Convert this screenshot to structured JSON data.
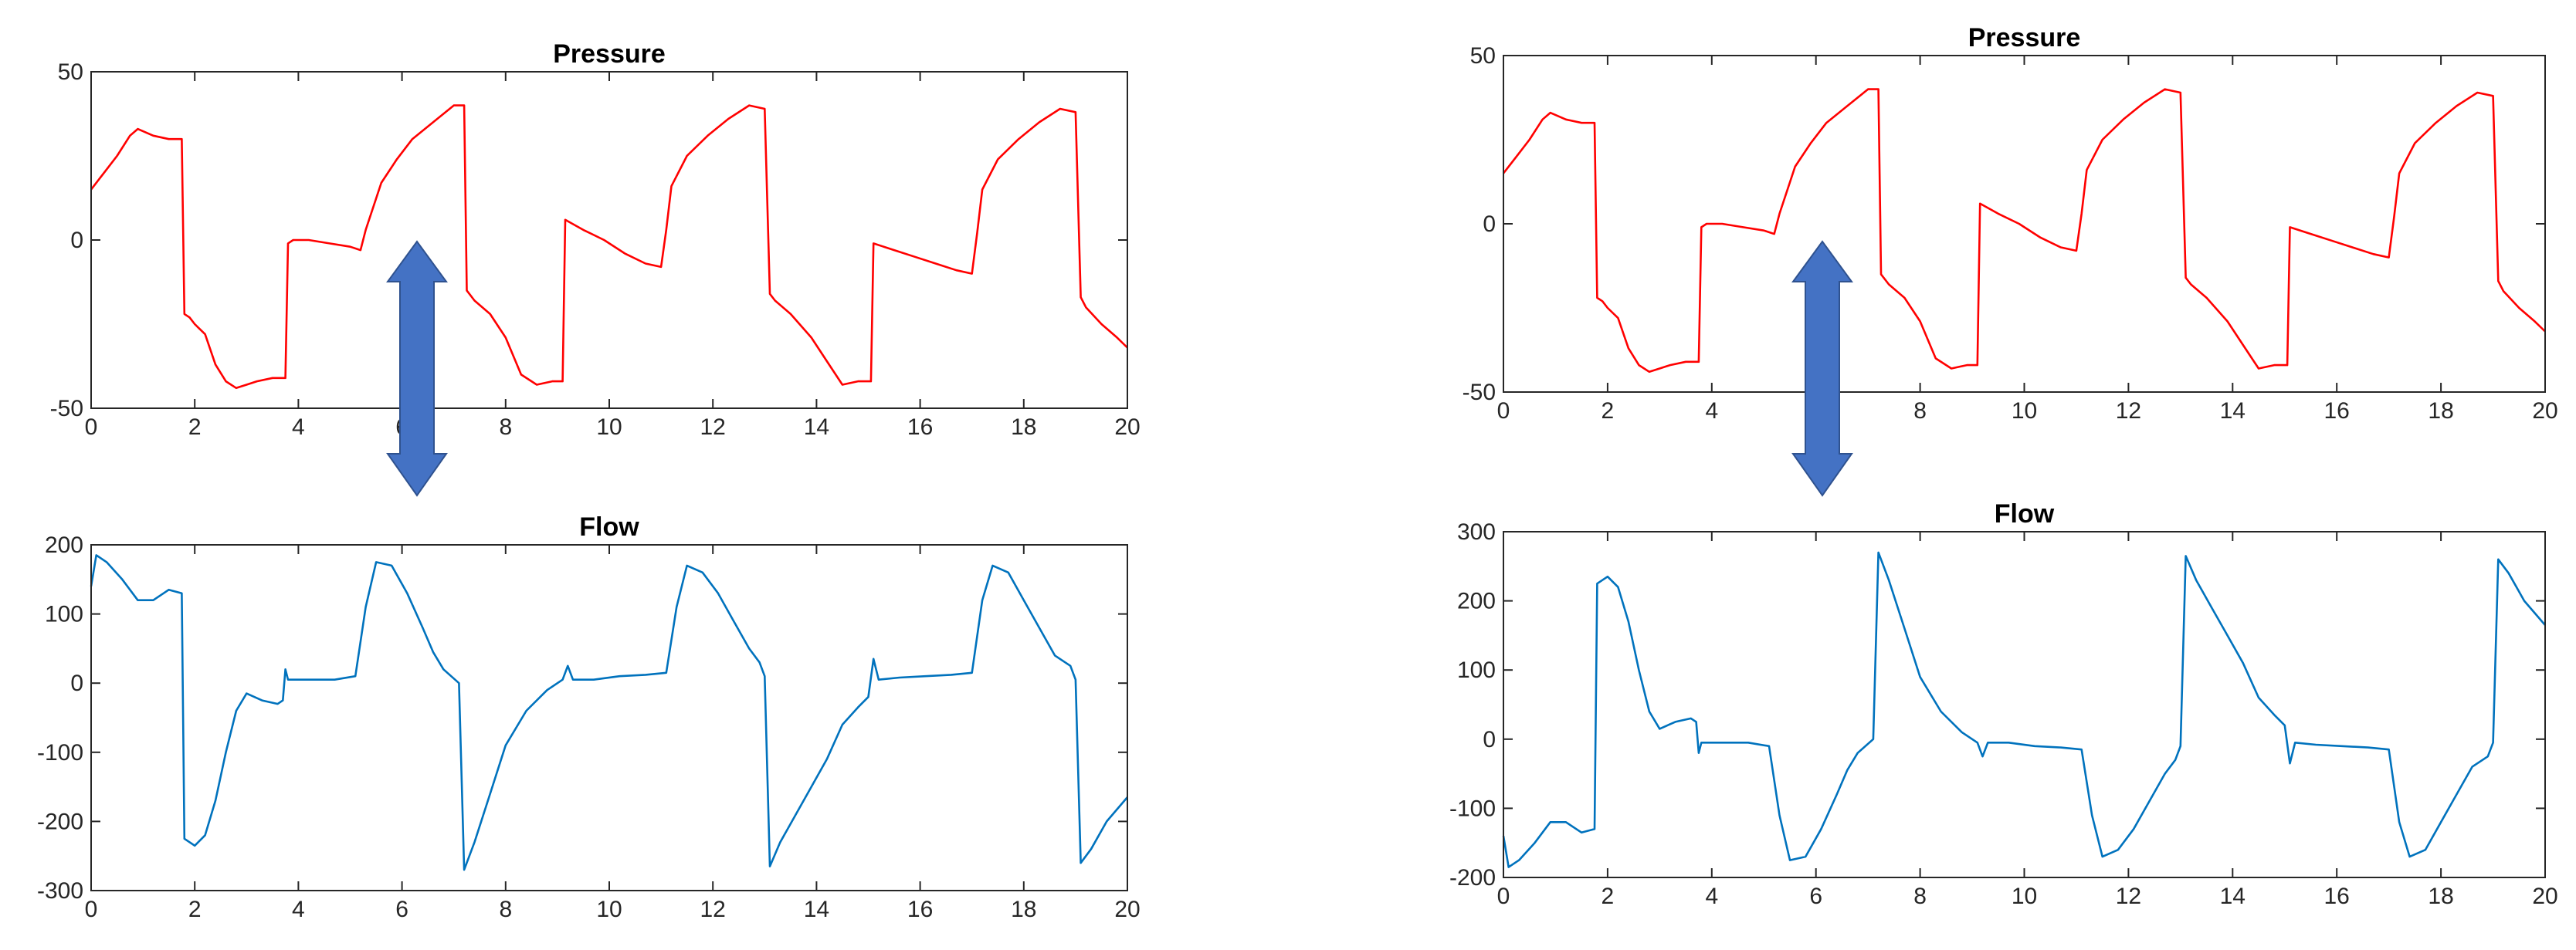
{
  "colors": {
    "pressure": "#ff0000",
    "flow": "#0072bd",
    "arrow_fill": "#4472c4",
    "arrow_stroke": "#2f528f",
    "axes": "#262626",
    "background": "#ffffff"
  },
  "chart_data": [
    {
      "id": "left-pressure",
      "type": "line",
      "title": "Pressure",
      "xlabel": "",
      "ylabel": "",
      "xlim": [
        0,
        20
      ],
      "ylim": [
        -50,
        50
      ],
      "xticks": [
        0,
        2,
        4,
        6,
        8,
        10,
        12,
        14,
        16,
        18,
        20
      ],
      "yticks": [
        -50,
        0,
        50
      ],
      "xtick_labels": [
        "0",
        "2",
        "4",
        "6",
        "8",
        "10",
        "12",
        "14",
        "16",
        "18",
        "20"
      ],
      "ytick_labels": [
        "-50",
        "0",
        "50"
      ],
      "grid": false,
      "series": [
        {
          "color": "#ff0000",
          "x": [
            0,
            0.25,
            0.5,
            0.75,
            0.9,
            1.2,
            1.5,
            1.75,
            1.8,
            1.9,
            2.0,
            2.2,
            2.4,
            2.6,
            2.8,
            3.0,
            3.2,
            3.5,
            3.75,
            3.8,
            3.9,
            4.2,
            4.6,
            5.0,
            5.2,
            5.3,
            5.6,
            5.9,
            6.2,
            6.6,
            7.0,
            7.2,
            7.25,
            7.4,
            7.7,
            8.0,
            8.3,
            8.6,
            8.9,
            9.1,
            9.15,
            9.5,
            9.9,
            10.3,
            10.7,
            11.0,
            11.1,
            11.2,
            11.5,
            11.9,
            12.3,
            12.7,
            13.0,
            13.1,
            13.2,
            13.5,
            13.9,
            14.2,
            14.5,
            14.8,
            15.05,
            15.1,
            15.5,
            15.9,
            16.3,
            16.7,
            17.0,
            17.1,
            17.2,
            17.5,
            17.9,
            18.3,
            18.7,
            19.0,
            19.1,
            19.2,
            19.5,
            19.8,
            20.0
          ],
          "y": [
            15,
            20,
            25,
            31,
            33,
            31,
            30,
            30,
            -22,
            -23,
            -25,
            -28,
            -37,
            -42,
            -44,
            -43,
            -42,
            -41,
            -41,
            -1,
            0,
            0,
            -1,
            -2,
            -3,
            3,
            17,
            24,
            30,
            35,
            40,
            40,
            -15,
            -18,
            -22,
            -29,
            -40,
            -43,
            -42,
            -42,
            6,
            3,
            0,
            -4,
            -7,
            -8,
            3,
            16,
            25,
            31,
            36,
            40,
            39,
            -16,
            -18,
            -22,
            -29,
            -36,
            -43,
            -42,
            -42,
            -1,
            -3,
            -5,
            -7,
            -9,
            -10,
            2,
            15,
            24,
            30,
            35,
            39,
            38,
            -17,
            -20,
            -25,
            -29,
            -32
          ]
        }
      ]
    },
    {
      "id": "left-flow",
      "type": "line",
      "title": "Flow",
      "xlabel": "",
      "ylabel": "",
      "xlim": [
        0,
        20
      ],
      "ylim": [
        -300,
        200
      ],
      "xticks": [
        0,
        2,
        4,
        6,
        8,
        10,
        12,
        14,
        16,
        18,
        20
      ],
      "yticks": [
        -300,
        -200,
        -100,
        0,
        100,
        200
      ],
      "xtick_labels": [
        "0",
        "2",
        "4",
        "6",
        "8",
        "10",
        "12",
        "14",
        "16",
        "18",
        "20"
      ],
      "ytick_labels": [
        "-300",
        "-200",
        "-100",
        "0",
        "100",
        "200"
      ],
      "grid": false,
      "series": [
        {
          "color": "#0072bd",
          "x": [
            0,
            0.1,
            0.3,
            0.6,
            0.9,
            1.2,
            1.5,
            1.75,
            1.8,
            2.0,
            2.2,
            2.4,
            2.6,
            2.8,
            3.0,
            3.3,
            3.6,
            3.7,
            3.75,
            3.8,
            4.2,
            4.7,
            5.1,
            5.3,
            5.5,
            5.8,
            6.1,
            6.4,
            6.6,
            6.8,
            7.1,
            7.2,
            7.4,
            7.7,
            8.0,
            8.4,
            8.8,
            9.1,
            9.2,
            9.3,
            9.7,
            10.2,
            10.7,
            11.1,
            11.3,
            11.5,
            11.8,
            12.1,
            12.4,
            12.7,
            12.9,
            13.0,
            13.1,
            13.3,
            13.6,
            13.9,
            14.2,
            14.5,
            14.8,
            15.0,
            15.1,
            15.2,
            15.6,
            16.1,
            16.6,
            17.0,
            17.2,
            17.4,
            17.7,
            18.0,
            18.3,
            18.6,
            18.9,
            19.0,
            19.1,
            19.3,
            19.6,
            20.0
          ],
          "y": [
            140,
            185,
            175,
            150,
            120,
            120,
            135,
            130,
            -225,
            -235,
            -220,
            -170,
            -100,
            -40,
            -15,
            -25,
            -30,
            -25,
            20,
            5,
            5,
            5,
            10,
            110,
            175,
            170,
            130,
            80,
            45,
            20,
            0,
            -270,
            -230,
            -160,
            -90,
            -40,
            -10,
            5,
            25,
            5,
            5,
            10,
            12,
            15,
            110,
            170,
            160,
            130,
            90,
            50,
            30,
            10,
            -265,
            -230,
            -190,
            -150,
            -110,
            -60,
            -35,
            -20,
            35,
            5,
            8,
            10,
            12,
            15,
            120,
            170,
            160,
            120,
            80,
            40,
            25,
            5,
            -260,
            -240,
            -200,
            -165
          ]
        }
      ]
    },
    {
      "id": "right-pressure",
      "type": "line",
      "title": "Pressure",
      "xlabel": "",
      "ylabel": "",
      "xlim": [
        0,
        20
      ],
      "ylim": [
        -50,
        50
      ],
      "xticks": [
        0,
        2,
        4,
        6,
        8,
        10,
        12,
        14,
        16,
        18,
        20
      ],
      "yticks": [
        -50,
        0,
        50
      ],
      "xtick_labels": [
        "0",
        "2",
        "4",
        "6",
        "8",
        "10",
        "12",
        "14",
        "16",
        "18",
        "20"
      ],
      "ytick_labels": [
        "-50",
        "0",
        "50"
      ],
      "grid": false,
      "series": [
        {
          "color": "#ff0000",
          "x": [
            0,
            0.25,
            0.5,
            0.75,
            0.9,
            1.2,
            1.5,
            1.75,
            1.8,
            1.9,
            2.0,
            2.2,
            2.4,
            2.6,
            2.8,
            3.0,
            3.2,
            3.5,
            3.75,
            3.8,
            3.9,
            4.2,
            4.6,
            5.0,
            5.2,
            5.3,
            5.6,
            5.9,
            6.2,
            6.6,
            7.0,
            7.2,
            7.25,
            7.4,
            7.7,
            8.0,
            8.3,
            8.6,
            8.9,
            9.1,
            9.15,
            9.5,
            9.9,
            10.3,
            10.7,
            11.0,
            11.1,
            11.2,
            11.5,
            11.9,
            12.3,
            12.7,
            13.0,
            13.1,
            13.2,
            13.5,
            13.9,
            14.2,
            14.5,
            14.8,
            15.05,
            15.1,
            15.5,
            15.9,
            16.3,
            16.7,
            17.0,
            17.1,
            17.2,
            17.5,
            17.9,
            18.3,
            18.7,
            19.0,
            19.1,
            19.2,
            19.5,
            19.8,
            20.0
          ],
          "y": [
            15,
            20,
            25,
            31,
            33,
            31,
            30,
            30,
            -22,
            -23,
            -25,
            -28,
            -37,
            -42,
            -44,
            -43,
            -42,
            -41,
            -41,
            -1,
            0,
            0,
            -1,
            -2,
            -3,
            3,
            17,
            24,
            30,
            35,
            40,
            40,
            -15,
            -18,
            -22,
            -29,
            -40,
            -43,
            -42,
            -42,
            6,
            3,
            0,
            -4,
            -7,
            -8,
            3,
            16,
            25,
            31,
            36,
            40,
            39,
            -16,
            -18,
            -22,
            -29,
            -36,
            -43,
            -42,
            -42,
            -1,
            -3,
            -5,
            -7,
            -9,
            -10,
            2,
            15,
            24,
            30,
            35,
            39,
            38,
            -17,
            -20,
            -25,
            -29,
            -32
          ]
        }
      ]
    },
    {
      "id": "right-flow",
      "type": "line",
      "title": "Flow",
      "xlabel": "",
      "ylabel": "",
      "xlim": [
        0,
        20
      ],
      "ylim": [
        -200,
        300
      ],
      "xticks": [
        0,
        2,
        4,
        6,
        8,
        10,
        12,
        14,
        16,
        18,
        20
      ],
      "yticks": [
        -200,
        -100,
        0,
        100,
        200,
        300
      ],
      "xtick_labels": [
        "0",
        "2",
        "4",
        "6",
        "8",
        "10",
        "12",
        "14",
        "16",
        "18",
        "20"
      ],
      "ytick_labels": [
        "-200",
        "-100",
        "0",
        "100",
        "200",
        "300"
      ],
      "grid": false,
      "series": [
        {
          "color": "#0072bd",
          "x": [
            0,
            0.1,
            0.3,
            0.6,
            0.9,
            1.2,
            1.5,
            1.75,
            1.8,
            2.0,
            2.2,
            2.4,
            2.6,
            2.8,
            3.0,
            3.3,
            3.6,
            3.7,
            3.75,
            3.8,
            4.2,
            4.7,
            5.1,
            5.3,
            5.5,
            5.8,
            6.1,
            6.4,
            6.6,
            6.8,
            7.1,
            7.2,
            7.4,
            7.7,
            8.0,
            8.4,
            8.8,
            9.1,
            9.2,
            9.3,
            9.7,
            10.2,
            10.7,
            11.1,
            11.3,
            11.5,
            11.8,
            12.1,
            12.4,
            12.7,
            12.9,
            13.0,
            13.1,
            13.3,
            13.6,
            13.9,
            14.2,
            14.5,
            14.8,
            15.0,
            15.1,
            15.2,
            15.6,
            16.1,
            16.6,
            17.0,
            17.2,
            17.4,
            17.7,
            18.0,
            18.3,
            18.6,
            18.9,
            19.0,
            19.1,
            19.3,
            19.6,
            20.0
          ],
          "y": [
            -140,
            -185,
            -175,
            -150,
            -120,
            -120,
            -135,
            -130,
            225,
            235,
            220,
            170,
            100,
            40,
            15,
            25,
            30,
            25,
            -20,
            -5,
            -5,
            -5,
            -10,
            -110,
            -175,
            -170,
            -130,
            -80,
            -45,
            -20,
            0,
            270,
            230,
            160,
            90,
            40,
            10,
            -5,
            -25,
            -5,
            -5,
            -10,
            -12,
            -15,
            -110,
            -170,
            -160,
            -130,
            -90,
            -50,
            -30,
            -10,
            265,
            230,
            190,
            150,
            110,
            60,
            35,
            20,
            -35,
            -5,
            -8,
            -10,
            -12,
            -15,
            -120,
            -170,
            -160,
            -120,
            -80,
            -40,
            -25,
            -5,
            260,
            240,
            200,
            165
          ]
        }
      ]
    }
  ]
}
